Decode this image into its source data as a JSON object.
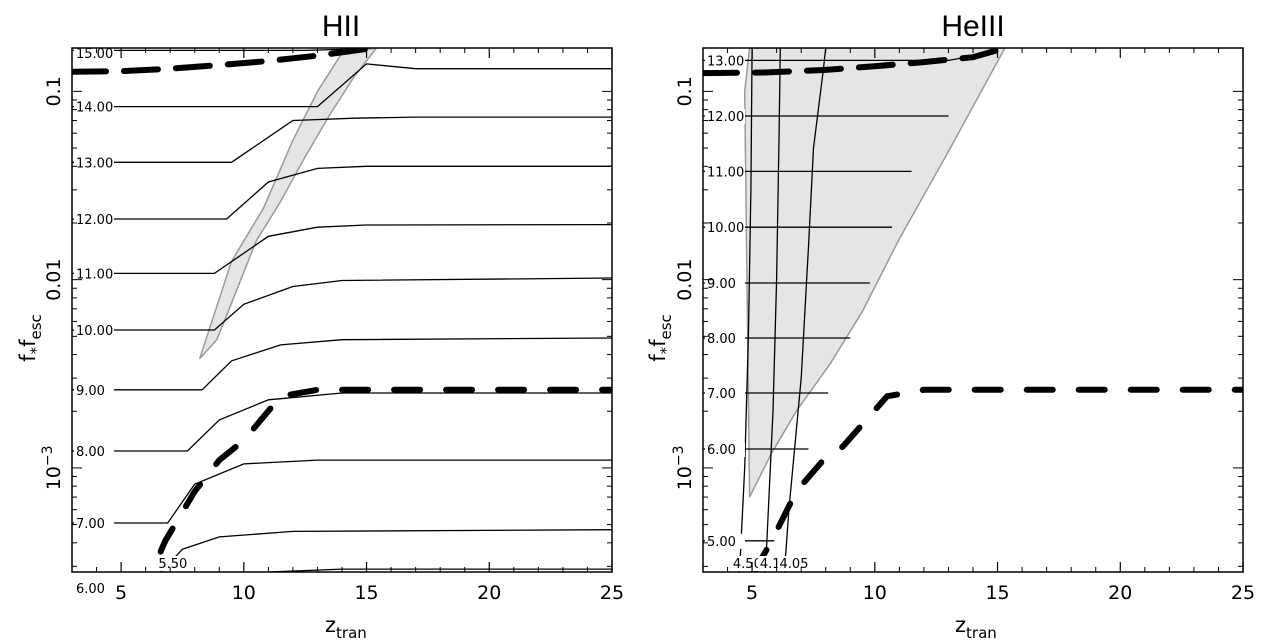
{
  "chart_data": [
    {
      "type": "line",
      "title": "HII",
      "xlabel": {
        "main": "z",
        "sub": "tran"
      },
      "ylabel": {
        "main": "f",
        "sub1": "*",
        "mid": "f",
        "sub2": "esc"
      },
      "xlim": [
        3,
        25
      ],
      "ylim": [
        0.00028,
        0.17
      ],
      "yscale": "log",
      "xticks": [
        "5",
        "10",
        "15",
        "20",
        "25"
      ],
      "yticks": [
        {
          "value": 0.1,
          "text": "0.1"
        },
        {
          "value": 0.01,
          "text": "0.01"
        },
        {
          "value": 0.001,
          "base": "10",
          "exp": "−3"
        }
      ],
      "contours": [
        {
          "label": "15.00",
          "points": [
            [
              3,
              0.165
            ],
            [
              12.5,
              0.165
            ],
            [
              14.5,
              0.168
            ]
          ]
        },
        {
          "label": "14.00",
          "points": [
            [
              3,
              0.083
            ],
            [
              13,
              0.083
            ],
            [
              15,
              0.14
            ],
            [
              17,
              0.132
            ],
            [
              25,
              0.132
            ]
          ]
        },
        {
          "label": "13.00",
          "points": [
            [
              3,
              0.042
            ],
            [
              9.5,
              0.042
            ],
            [
              12,
              0.07
            ],
            [
              14.5,
              0.072
            ],
            [
              17,
              0.073
            ],
            [
              25,
              0.073
            ]
          ]
        },
        {
          "label": "12.00",
          "points": [
            [
              3,
              0.021
            ],
            [
              9.3,
              0.021
            ],
            [
              11,
              0.033
            ],
            [
              13,
              0.039
            ],
            [
              15,
              0.04
            ],
            [
              25,
              0.04
            ]
          ]
        },
        {
          "label": "11.00",
          "points": [
            [
              3,
              0.0108
            ],
            [
              8.8,
              0.0108
            ],
            [
              11,
              0.017
            ],
            [
              13,
              0.019
            ],
            [
              15,
              0.0195
            ],
            [
              25,
              0.0196
            ]
          ]
        },
        {
          "label": "10.00",
          "points": [
            [
              3,
              0.0054
            ],
            [
              8.8,
              0.0054
            ],
            [
              10,
              0.0074
            ],
            [
              12,
              0.0092
            ],
            [
              14,
              0.0099
            ],
            [
              25,
              0.0102
            ]
          ]
        },
        {
          "label": "9.00",
          "points": [
            [
              3,
              0.0026
            ],
            [
              8.3,
              0.0026
            ],
            [
              9.5,
              0.0037
            ],
            [
              11.5,
              0.0045
            ],
            [
              14,
              0.0048
            ],
            [
              25,
              0.0049
            ]
          ]
        },
        {
          "label": "8.00",
          "points": [
            [
              3,
              0.00123
            ],
            [
              7.7,
              0.00123
            ],
            [
              9,
              0.0018
            ],
            [
              11,
              0.0023
            ],
            [
              14,
              0.0025
            ],
            [
              25,
              0.0025
            ]
          ]
        },
        {
          "label": "7.00",
          "points": [
            [
              3,
              0.00051
            ],
            [
              6.9,
              0.00051
            ],
            [
              8,
              0.00082
            ],
            [
              10,
              0.00105
            ],
            [
              13,
              0.0011
            ],
            [
              25,
              0.0011
            ]
          ]
        },
        {
          "label": "6.00",
          "points": [
            [
              3,
              0.00023
            ],
            [
              6,
              0.00023
            ],
            [
              7.5,
              0.00037
            ],
            [
              9,
              0.00043
            ],
            [
              12,
              0.00046
            ],
            [
              25,
              0.00047
            ]
          ]
        },
        {
          "label": "5.50",
          "points": [
            [
              6.6,
              0.00017
            ],
            [
              7.5,
              0.00022
            ],
            [
              9,
              0.00026
            ],
            [
              11,
              0.00028
            ],
            [
              14,
              0.00029
            ],
            [
              25,
              0.00029
            ]
          ]
        }
      ],
      "shaded_region": [
        [
          8.2,
          0.0038
        ],
        [
          9.5,
          0.0125
        ],
        [
          10.8,
          0.024
        ],
        [
          12,
          0.055
        ],
        [
          13,
          0.1
        ],
        [
          14,
          0.16
        ],
        [
          15.4,
          0.17
        ],
        [
          14.5,
          0.12
        ],
        [
          13.5,
          0.075
        ],
        [
          12.5,
          0.045
        ],
        [
          11.5,
          0.026
        ],
        [
          10.5,
          0.016
        ],
        [
          9.5,
          0.0075
        ],
        [
          8.9,
          0.0048
        ]
      ],
      "dashed_curve": [
        [
          3,
          0.127
        ],
        [
          5,
          0.128
        ],
        [
          7,
          0.132
        ],
        [
          9,
          0.138
        ],
        [
          11,
          0.145
        ],
        [
          13,
          0.155
        ],
        [
          15.3,
          0.17
        ]
      ],
      "thick_curve": [
        [
          3,
          0.00027
        ],
        [
          6.2,
          0.00027
        ],
        [
          6.8,
          0.00041
        ],
        [
          8,
          0.00075
        ],
        [
          9,
          0.0011
        ],
        [
          10,
          0.0014
        ],
        [
          11.5,
          0.0024
        ],
        [
          13,
          0.0026
        ],
        [
          25,
          0.0026
        ]
      ]
    },
    {
      "type": "line",
      "title": "HeIII",
      "xlabel": {
        "main": "z",
        "sub": "tran"
      },
      "ylabel": {
        "main": "f",
        "sub1": "*",
        "mid": "f",
        "sub2": "esc"
      },
      "xlim": [
        3,
        25
      ],
      "ylim": [
        0.00028,
        0.17
      ],
      "yscale": "log",
      "xticks": [
        "5",
        "10",
        "15",
        "20",
        "25"
      ],
      "yticks": [
        {
          "value": 0.1,
          "text": "0.1"
        },
        {
          "value": 0.01,
          "text": "0.01"
        },
        {
          "value": 0.001,
          "base": "10",
          "exp": "−3"
        }
      ],
      "contours": [
        {
          "label": "13.00",
          "points": [
            [
              3,
              0.146
            ],
            [
              13,
              0.146
            ],
            [
              14.5,
              0.158
            ]
          ]
        },
        {
          "label": "12.00",
          "points": [
            [
              3,
              0.074
            ],
            [
              13,
              0.074
            ]
          ]
        },
        {
          "label": "11.00",
          "points": [
            [
              3,
              0.0376
            ],
            [
              11.5,
              0.0376
            ]
          ]
        },
        {
          "label": "10.00",
          "points": [
            [
              3,
              0.019
            ],
            [
              10.7,
              0.019
            ]
          ]
        },
        {
          "label": "9.00",
          "points": [
            [
              3,
              0.0096
            ],
            [
              9.8,
              0.0096
            ]
          ]
        },
        {
          "label": "8.00",
          "points": [
            [
              3,
              0.0049
            ],
            [
              9,
              0.0049
            ]
          ]
        },
        {
          "label": "7.00",
          "points": [
            [
              3,
              0.0025
            ],
            [
              8.1,
              0.0025
            ]
          ]
        },
        {
          "label": "6.00",
          "points": [
            [
              3,
              0.00126
            ],
            [
              7.3,
              0.00126
            ]
          ]
        },
        {
          "label": "5.00",
          "points": [
            [
              3,
              0.00041
            ],
            [
              5.9,
              0.00041
            ]
          ]
        },
        {
          "label": "4.50",
          "points": [
            [
              4.3,
              0.00017
            ],
            [
              4.5,
              0.0003
            ],
            [
              4.7,
              0.001
            ],
            [
              4.85,
              0.005
            ],
            [
              4.95,
              0.03
            ],
            [
              5,
              0.17
            ]
          ]
        },
        {
          "label": "4.10",
          "points": [
            [
              5.4,
              0.00017
            ],
            [
              5.6,
              0.0004
            ],
            [
              5.85,
              0.002
            ],
            [
              6,
              0.01
            ],
            [
              6.1,
              0.06
            ],
            [
              6.15,
              0.17
            ]
          ]
        },
        {
          "label": "4.05",
          "points": [
            [
              6.2,
              0.00017
            ],
            [
              6.5,
              0.0006
            ],
            [
              7,
              0.003
            ],
            [
              7.3,
              0.015
            ],
            [
              7.5,
              0.05
            ],
            [
              7.9,
              0.13
            ],
            [
              8,
              0.17
            ]
          ]
        }
      ],
      "shaded_region": [
        [
          4.9,
          0.0007
        ],
        [
          4.7,
          0.1
        ],
        [
          4.9,
          0.17
        ],
        [
          15.3,
          0.17
        ],
        [
          13,
          0.048
        ],
        [
          11,
          0.0165
        ],
        [
          9.5,
          0.0068
        ],
        [
          8.2,
          0.0036
        ],
        [
          6.8,
          0.002
        ],
        [
          5.8,
          0.0012
        ]
      ],
      "dashed_curve": [
        [
          3,
          0.125
        ],
        [
          5.5,
          0.126
        ],
        [
          8,
          0.13
        ],
        [
          10,
          0.136
        ],
        [
          12,
          0.143
        ],
        [
          14,
          0.152
        ],
        [
          15.3,
          0.17
        ]
      ],
      "thick_curve": [
        [
          3,
          0.00027
        ],
        [
          5,
          0.00027
        ],
        [
          5.8,
          0.00041
        ],
        [
          6.8,
          0.00075
        ],
        [
          7.9,
          0.0011
        ],
        [
          8.7,
          0.0013
        ],
        [
          10.5,
          0.0024
        ],
        [
          12,
          0.0026
        ],
        [
          25,
          0.0026
        ]
      ]
    }
  ]
}
